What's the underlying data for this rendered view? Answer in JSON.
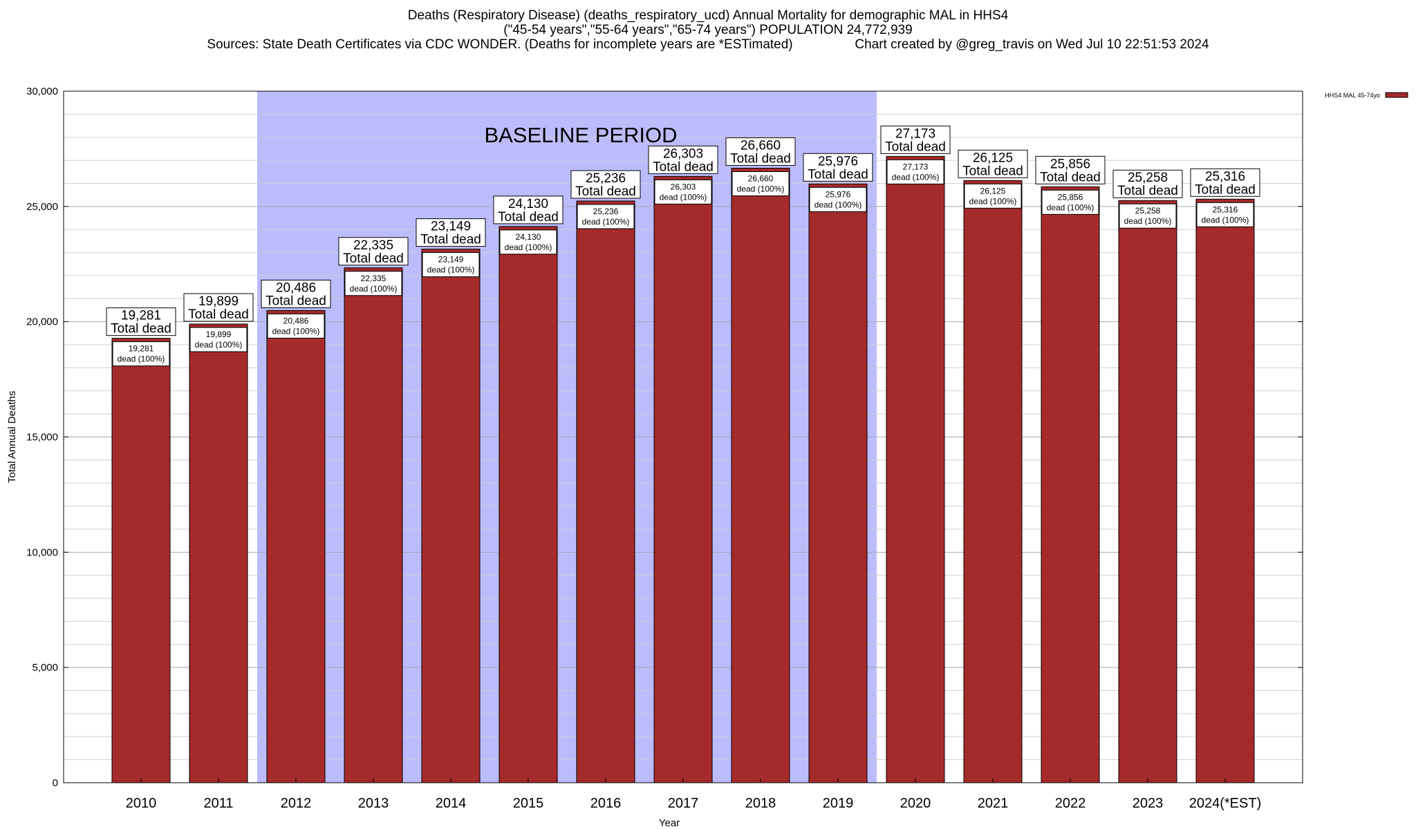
{
  "header": {
    "title_line1": "Deaths (Respiratory Disease) (deaths_respiratory_ucd) Annual Mortality for demographic MAL in HHS4",
    "title_line2": "(\"45-54 years\",\"55-64 years\",\"65-74 years\") POPULATION 24,772,939",
    "title_line3": "Sources: State Death Certificates via CDC WONDER. (Deaths for incomplete years are *ESTimated)                 Chart created by @greg_travis on Wed Jul 10 22:51:53 2024"
  },
  "chart_data": {
    "type": "bar",
    "xlabel": "Year",
    "ylabel": "Total Annual Deaths",
    "ylim": [
      0,
      30000
    ],
    "y_ticks": [
      0,
      5000,
      10000,
      15000,
      20000,
      25000,
      30000
    ],
    "y_tick_labels": [
      "0",
      "5,000",
      "10,000",
      "15,000",
      "20,000",
      "25,000",
      "30,000"
    ],
    "categories": [
      "2010",
      "2011",
      "2012",
      "2013",
      "2014",
      "2015",
      "2016",
      "2017",
      "2018",
      "2019",
      "2020",
      "2021",
      "2022",
      "2023",
      "2024(*EST)"
    ],
    "series": [
      {
        "name": "HHS4 MAL 45-74yo",
        "values": [
          19281,
          19899,
          20486,
          22335,
          23149,
          24130,
          25236,
          26303,
          26660,
          25976,
          27173,
          26125,
          25856,
          25258,
          25316
        ],
        "color": "#a52a2a"
      }
    ],
    "total_label_values": [
      "19,281",
      "19,899",
      "20,486",
      "22,335",
      "23,149",
      "24,130",
      "25,236",
      "26,303",
      "26,660",
      "25,976",
      "27,173",
      "26,125",
      "25,856",
      "25,258",
      "25,316"
    ],
    "total_label_suffix": "Total dead",
    "inner_label_suffix": "dead (100%)",
    "baseline": {
      "label": "BASELINE PERIOD",
      "start": "2012",
      "end": "2019",
      "color": "#bcbcfc"
    },
    "grid": true,
    "legend_position": "top-right",
    "legend_label": "HHS4 MAL 45-74yo"
  }
}
